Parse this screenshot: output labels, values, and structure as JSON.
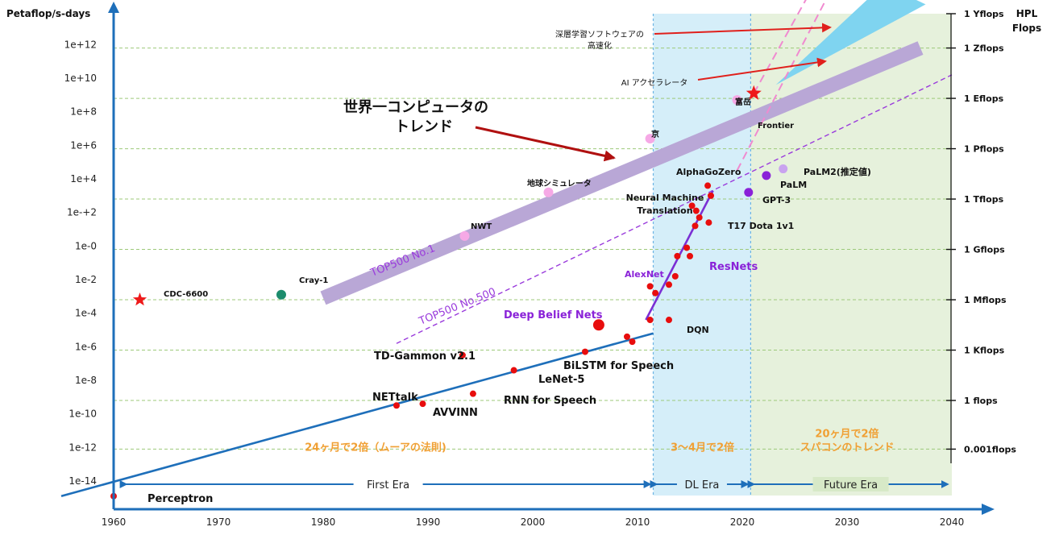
{
  "chart_data": {
    "type": "scatter",
    "ylabel": "Petaflop/s-days",
    "ylabel_right": "HPL Flops",
    "xlim": [
      1955,
      2042
    ],
    "ylim_log10": [
      -15,
      13.5
    ],
    "x_ticks": [
      1960,
      1970,
      1980,
      1990,
      2000,
      2010,
      2020,
      2030,
      2040
    ],
    "y_ticks": [
      {
        "label": "1e-14",
        "exp": -14
      },
      {
        "label": "1e-12",
        "exp": -12
      },
      {
        "label": "1e-10",
        "exp": -10
      },
      {
        "label": "1e-8",
        "exp": -8
      },
      {
        "label": "1e-6",
        "exp": -6
      },
      {
        "label": "1e-4",
        "exp": -4
      },
      {
        "label": "1e-2",
        "exp": -2
      },
      {
        "label": "1e-0",
        "exp": 0
      },
      {
        "label": "1e-+2",
        "exp": 2
      },
      {
        "label": "1e+4",
        "exp": 4
      },
      {
        "label": "1e+6",
        "exp": 6
      },
      {
        "label": "1e+8",
        "exp": 8
      },
      {
        "label": "1e+10",
        "exp": 10
      },
      {
        "label": "1e+12",
        "exp": 12
      }
    ],
    "right_ticks": [
      {
        "label": "0.001flops",
        "exp": -12.1
      },
      {
        "label": "1 flops",
        "exp": -9.2
      },
      {
        "label": "1 Kflops",
        "exp": -6.2
      },
      {
        "label": "1 Mflops",
        "exp": -3.2
      },
      {
        "label": "1 Gflops",
        "exp": -0.2
      },
      {
        "label": "1 Tflops",
        "exp": 2.8
      },
      {
        "label": "1 Pflops",
        "exp": 5.8
      },
      {
        "label": "1 Eflops",
        "exp": 8.8
      },
      {
        "label": "1 Zflops",
        "exp": 11.8
      },
      {
        "label": "1 Yflops",
        "exp": 14.8
      }
    ],
    "eras": [
      {
        "name": "First Era",
        "x": [
          1961,
          2011.5
        ]
      },
      {
        "name": "DL Era",
        "x": [
          2011.5,
          2021
        ]
      },
      {
        "name": "Future Era",
        "x": [
          2021,
          2039
        ]
      }
    ],
    "era_notes": [
      {
        "text": "24ヶ月で2倍（ムーアの法則)",
        "x": 1985,
        "exp": -12
      },
      {
        "text": "3～4月で2倍",
        "x": 2016.2,
        "exp": -12
      },
      {
        "text": "20ヶ月で2倍",
        "x": 2030,
        "exp": -11.2
      },
      {
        "text": "スパコンのトレンド",
        "x": 2030,
        "exp": -12
      }
    ],
    "trend_lines": [
      {
        "name": "Moore's law",
        "color": "#1e6fba",
        "x": [
          1955,
          2011.5
        ],
        "exp": [
          -14.9,
          -5.2
        ]
      },
      {
        "name": "DL trend",
        "color": "#7b2fd4",
        "x": [
          2010.8,
          2017.2
        ],
        "exp": [
          -4.4,
          3.3
        ]
      }
    ],
    "supercomputer_band": {
      "label": "TOP500 No.1",
      "x": [
        1980,
        2037
      ],
      "exp": [
        -3.1,
        11.8
      ]
    },
    "top500_500": {
      "label": "TOP500 No.500",
      "x": [
        1987,
        2040
      ],
      "exp": [
        -5.8,
        10.2
      ]
    },
    "points": [
      {
        "label": "Perceptron",
        "x": 1960,
        "exp": -14.9
      },
      {
        "label": "NETtalk",
        "x": 1987,
        "exp": -9.5
      },
      {
        "label": "AVVINN",
        "x": 1989.5,
        "exp": -9.4
      },
      {
        "label": "RNN for Speech",
        "x": 1994.3,
        "exp": -8.8
      },
      {
        "label": "TD-Gammon v2.1",
        "x": 1993.3,
        "exp": -6.5
      },
      {
        "label": "LeNet-5",
        "x": 1998.2,
        "exp": -7.4
      },
      {
        "label": "BiLSTM for Speech",
        "x": 2005,
        "exp": -6.3
      },
      {
        "label": "",
        "x": 2009,
        "exp": -5.4
      },
      {
        "label": "",
        "x": 2009.5,
        "exp": -5.7
      },
      {
        "label": "AlexNet",
        "x": 2011.2,
        "exp": -2.4
      },
      {
        "label": "",
        "x": 2011.7,
        "exp": -2.8
      },
      {
        "label": "",
        "x": 2011.2,
        "exp": -4.4
      },
      {
        "label": "DQN",
        "x": 2013,
        "exp": -4.4
      },
      {
        "label": "",
        "x": 2013,
        "exp": -2.3
      },
      {
        "label": "",
        "x": 2013.6,
        "exp": -1.8
      },
      {
        "label": "",
        "x": 2013.8,
        "exp": -0.6
      },
      {
        "label": "ResNets",
        "x": 2014.7,
        "exp": -0.1
      },
      {
        "label": "",
        "x": 2015,
        "exp": -0.6
      },
      {
        "label": "",
        "x": 2015.5,
        "exp": 1.2
      },
      {
        "label": "",
        "x": 2015.6,
        "exp": 2.1
      },
      {
        "label": "",
        "x": 2015.9,
        "exp": 1.7
      },
      {
        "label": "Neural Machine Translation",
        "x": 2015.2,
        "exp": 2.4
      },
      {
        "label": "T17 Dota 1v1",
        "x": 2016.8,
        "exp": 1.4
      },
      {
        "label": "AlphaGoZero",
        "x": 2016.7,
        "exp": 3.6
      },
      {
        "label": "",
        "x": 2017,
        "exp": 3.0
      }
    ],
    "other_points": [
      {
        "label": "Deep Belief Nets",
        "x": 2006.3,
        "exp": -4.7
      },
      {
        "label": "GPT-3",
        "x": 2020.6,
        "exp": 3.2
      },
      {
        "label": "PaLM",
        "x": 2022.3,
        "exp": 4.2
      },
      {
        "label": "PaLM2(推定値)",
        "x": 2023.9,
        "exp": 4.6
      }
    ],
    "supercomputers": [
      {
        "label": "CDC-6600",
        "x": 1962.5,
        "exp": -3.2
      },
      {
        "label": "Cray-1",
        "x": 1976,
        "exp": -2.9
      },
      {
        "label": "NWT",
        "x": 1993.5,
        "exp": 0.6
      },
      {
        "label": "地球シミュレータ",
        "x": 2001.5,
        "exp": 3.2
      },
      {
        "label": "京",
        "x": 2011.2,
        "exp": 6.4
      },
      {
        "label": "富岳",
        "x": 2019.5,
        "exp": 8.7
      },
      {
        "label": "Frontier",
        "x": 2021.1,
        "exp": 9.1
      }
    ],
    "annotations": [
      {
        "text": "世界一コンピュータの",
        "x": 1987.3,
        "exp": 9.0
      },
      {
        "text": "トレンド",
        "x": 1991.8,
        "exp": 7.8
      },
      {
        "text": "深層学習ソフトウェアの",
        "x": 2011.7,
        "exp": 12.9
      },
      {
        "text": "高速化",
        "x": 2013,
        "exp": 12.3
      },
      {
        "text": "AI アクセラレータ",
        "x": 2017.2,
        "exp": 10.3
      }
    ]
  }
}
